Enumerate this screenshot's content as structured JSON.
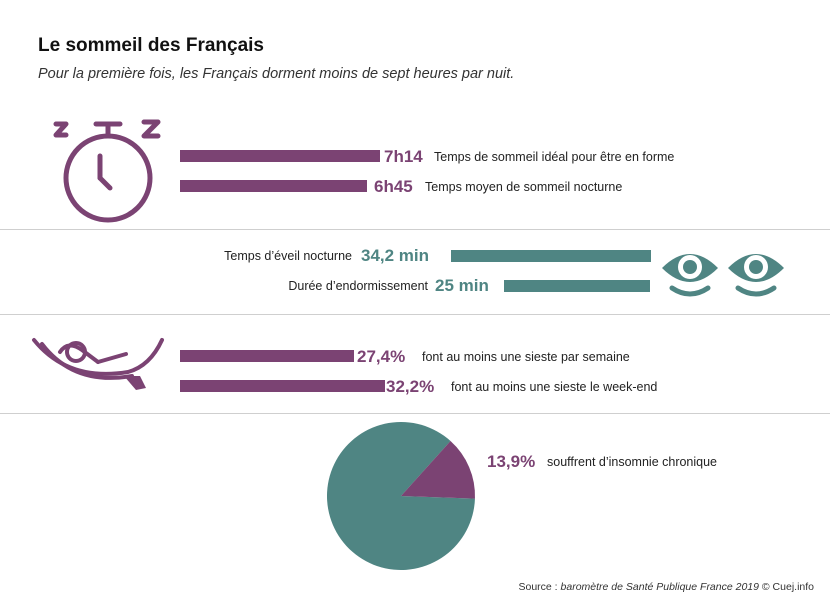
{
  "colors": {
    "purple": "#7b4373",
    "teal": "#4f8583",
    "divider": "#cfcfcf"
  },
  "header": {
    "title": "Le sommeil des Français",
    "subtitle": "Pour la première fois, les Français dorment moins de sept heures par nuit."
  },
  "icons": [
    "stopwatch-zzz-icon",
    "eye-icon",
    "eye-icon",
    "hammock-icon"
  ],
  "chart_data": [
    {
      "type": "bar",
      "categories": [
        "Temps de sommeil idéal pour être en forme",
        "Temps moyen de sommeil nocturne"
      ],
      "values": [
        434,
        405
      ],
      "value_labels": [
        "7h14",
        "6h45"
      ],
      "unit": "minutes",
      "color": "#7b4373"
    },
    {
      "type": "bar",
      "categories": [
        "Temps d’éveil nocturne",
        "Durée d’endormissement"
      ],
      "values": [
        34.2,
        25
      ],
      "value_labels": [
        "34,2 min",
        "25 min"
      ],
      "unit": "min",
      "color": "#4f8583"
    },
    {
      "type": "bar",
      "categories": [
        "font au moins une sieste par semaine",
        "font au moins une sieste le week-end"
      ],
      "values": [
        27.4,
        32.2
      ],
      "value_labels": [
        "27,4%",
        "32,2%"
      ],
      "unit": "%",
      "color": "#7b4373"
    },
    {
      "type": "pie",
      "slices": [
        {
          "label": "souffrent d’insomnie chronique",
          "value": 13.9,
          "value_label": "13,9%",
          "color": "#7b4373"
        },
        {
          "label": "",
          "value": 86.1,
          "color": "#4f8583"
        }
      ]
    }
  ],
  "source": {
    "prefix": "Source : ",
    "italic": "baromètre de Santé Publique France 2019",
    "suffix": " © Cuej.info"
  }
}
